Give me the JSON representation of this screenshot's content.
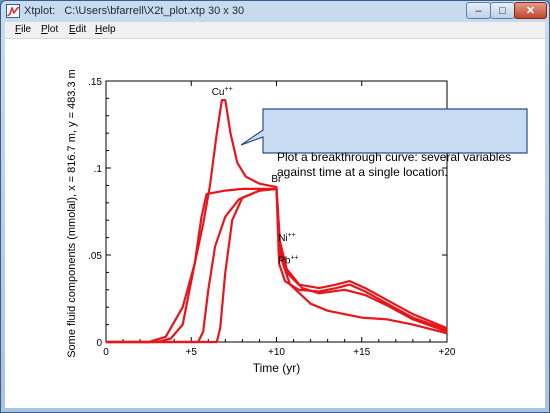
{
  "window": {
    "title": "Xtplot:   C:\\Users\\bfarrell\\X2t_plot.xtp",
    "grid_size": "30 x 30",
    "minimize_label": "–",
    "maximize_label": "□",
    "close_label": "✕",
    "app_icon": "xtplot-icon"
  },
  "menu": [
    {
      "label": "File",
      "key": "F",
      "rest": "ile"
    },
    {
      "label": "Plot",
      "key": "P",
      "rest": "lot"
    },
    {
      "label": "Edit",
      "key": "E",
      "rest": "dit"
    },
    {
      "label": "Help",
      "key": "H",
      "rest": "elp"
    }
  ],
  "callout": "Plot a breakthrough curve: several variables against time at a single location.",
  "colors": {
    "curve": "#e8151b",
    "callout_fill": "#c7dbf3",
    "callout_border": "#2a4f86"
  },
  "chart_data": {
    "type": "line",
    "xlabel": "Time (yr)",
    "ylabel": "Some fluid components (mmolal), x = 816.7 m, y = 483.3 m",
    "xlim": [
      0,
      20
    ],
    "ylim": [
      0,
      0.15
    ],
    "x_ticks": [
      {
        "v": 0,
        "label": "0"
      },
      {
        "v": 5,
        "label": "+5"
      },
      {
        "v": 10,
        "label": "+10"
      },
      {
        "v": 15,
        "label": "+15"
      },
      {
        "v": 20,
        "label": "+20"
      }
    ],
    "y_ticks": [
      {
        "v": 0,
        "label": "0"
      },
      {
        "v": 0.05,
        "label": ".05"
      },
      {
        "v": 0.1,
        "label": ".1"
      },
      {
        "v": 0.15,
        "label": ".15"
      }
    ],
    "series": [
      {
        "name": "Cu++",
        "points": [
          [
            0,
            0
          ],
          [
            2.5,
            0
          ],
          [
            3.5,
            0.003
          ],
          [
            4.5,
            0.02
          ],
          [
            5.2,
            0.045
          ],
          [
            5.7,
            0.068
          ],
          [
            6.1,
            0.09
          ],
          [
            6.5,
            0.12
          ],
          [
            6.8,
            0.139
          ],
          [
            7.0,
            0.139
          ],
          [
            7.3,
            0.12
          ],
          [
            7.7,
            0.103
          ],
          [
            8.2,
            0.095
          ],
          [
            9,
            0.091
          ],
          [
            10,
            0.089
          ],
          [
            10.2,
            0.054
          ],
          [
            10.6,
            0.04
          ],
          [
            11.3,
            0.033
          ],
          [
            12.5,
            0.031
          ],
          [
            13.5,
            0.033
          ],
          [
            14.3,
            0.035
          ],
          [
            15.2,
            0.031
          ],
          [
            16.5,
            0.024
          ],
          [
            18,
            0.016
          ],
          [
            20,
            0.008
          ]
        ]
      },
      {
        "name": "Br-",
        "points": [
          [
            0,
            0
          ],
          [
            3.0,
            0
          ],
          [
            3.8,
            0.002
          ],
          [
            4.5,
            0.01
          ],
          [
            5.2,
            0.045
          ],
          [
            5.6,
            0.072
          ],
          [
            5.9,
            0.085
          ],
          [
            6.4,
            0.086
          ],
          [
            7,
            0.087
          ],
          [
            8,
            0.088
          ],
          [
            9,
            0.088
          ],
          [
            10,
            0.088
          ],
          [
            10.15,
            0.045
          ],
          [
            10.5,
            0.035
          ],
          [
            11.3,
            0.03
          ],
          [
            12.5,
            0.029
          ],
          [
            13.5,
            0.031
          ],
          [
            14.3,
            0.033
          ],
          [
            15.2,
            0.029
          ],
          [
            16.5,
            0.022
          ],
          [
            18,
            0.014
          ],
          [
            20,
            0.007
          ]
        ]
      },
      {
        "name": "Ni++",
        "points": [
          [
            0,
            0
          ],
          [
            5.4,
            0
          ],
          [
            5.7,
            0.006
          ],
          [
            6.0,
            0.03
          ],
          [
            6.4,
            0.055
          ],
          [
            7,
            0.072
          ],
          [
            7.8,
            0.082
          ],
          [
            9,
            0.087
          ],
          [
            10,
            0.088
          ],
          [
            10.2,
            0.058
          ],
          [
            10.6,
            0.042
          ],
          [
            11.5,
            0.031
          ],
          [
            12.5,
            0.028
          ],
          [
            14,
            0.03
          ],
          [
            15.2,
            0.027
          ],
          [
            16.5,
            0.021
          ],
          [
            18,
            0.013
          ],
          [
            20,
            0.006
          ]
        ]
      },
      {
        "name": "Pb++",
        "points": [
          [
            0,
            0
          ],
          [
            6.5,
            0
          ],
          [
            6.7,
            0.008
          ],
          [
            7.0,
            0.04
          ],
          [
            7.4,
            0.07
          ],
          [
            8,
            0.083
          ],
          [
            9,
            0.087
          ],
          [
            10,
            0.088
          ],
          [
            10.2,
            0.05
          ],
          [
            10.8,
            0.033
          ],
          [
            12,
            0.022
          ],
          [
            13,
            0.018
          ],
          [
            14,
            0.016
          ],
          [
            15,
            0.014
          ],
          [
            16.5,
            0.013
          ],
          [
            18,
            0.01
          ],
          [
            20,
            0.005
          ]
        ]
      }
    ],
    "annotations": [
      {
        "base": "Cu",
        "sup": "++",
        "x": 6.2,
        "y": 0.142
      },
      {
        "base": "Br",
        "sup": "-",
        "x": 9.7,
        "y": 0.092
      },
      {
        "base": "Ni",
        "sup": "++",
        "x": 10.1,
        "y": 0.058
      },
      {
        "base": "Pb",
        "sup": "++",
        "x": 10.1,
        "y": 0.045
      }
    ]
  }
}
